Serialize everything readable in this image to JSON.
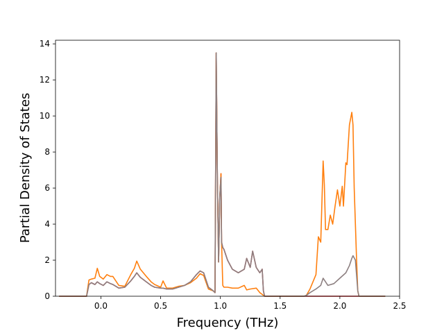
{
  "chart_data": {
    "type": "line",
    "title": "",
    "xlabel": "Frequency (THz)",
    "ylabel": "Partial Density of States",
    "xlim": [
      -0.38,
      2.5
    ],
    "ylim": [
      0,
      14.2
    ],
    "xticks": [
      0.0,
      0.5,
      1.0,
      1.5,
      2.0,
      2.5
    ],
    "xtick_labels": [
      "0.0",
      "0.5",
      "1.0",
      "1.5",
      "2.0",
      "2.5"
    ],
    "yticks": [
      0,
      2,
      4,
      6,
      8,
      10,
      12,
      14
    ],
    "ytick_labels": [
      "0",
      "2",
      "4",
      "6",
      "8",
      "10",
      "12",
      "14"
    ],
    "grid": false,
    "legend": "none",
    "series": [
      {
        "color": "#d62728",
        "x": [
          -0.35,
          -0.12,
          -0.1,
          -0.08,
          -0.05,
          -0.03,
          -0.01,
          0.02,
          0.05,
          0.08,
          0.1,
          0.15,
          0.2,
          0.25,
          0.28,
          0.3,
          0.33,
          0.38,
          0.42,
          0.45,
          0.5,
          0.52,
          0.55,
          0.6,
          0.65,
          0.7,
          0.75,
          0.8,
          0.83,
          0.86,
          0.9,
          0.94,
          0.955,
          0.965,
          0.975,
          0.985,
          0.995,
          1.005,
          1.01,
          1.02,
          1.03,
          1.06,
          1.1,
          1.15,
          1.2,
          1.22,
          1.25,
          1.27,
          1.3,
          1.33,
          1.35,
          1.36,
          1.37,
          1.4,
          2.0,
          2.1,
          2.15,
          2.16,
          2.2,
          2.38
        ],
        "y": [
          0,
          0,
          0.65,
          0.75,
          0.65,
          0.8,
          0.7,
          0.6,
          0.8,
          0.7,
          0.65,
          0.45,
          0.5,
          0.85,
          1.1,
          1.3,
          1.05,
          0.8,
          0.6,
          0.5,
          0.45,
          0.45,
          0.4,
          0.4,
          0.5,
          0.6,
          0.8,
          1.2,
          1.4,
          1.3,
          0.5,
          0.3,
          0.2,
          13.5,
          6.5,
          1.9,
          5.5,
          6.8,
          3.0,
          2.7,
          2.6,
          2.0,
          1.5,
          1.3,
          1.5,
          2.1,
          1.6,
          2.5,
          1.6,
          1.3,
          1.5,
          0.3,
          0,
          0,
          0,
          0,
          0,
          0,
          0,
          0
        ]
      },
      {
        "color": "#ff7f0e",
        "x": [
          -0.35,
          -0.12,
          -0.1,
          -0.08,
          -0.05,
          -0.03,
          -0.01,
          0.02,
          0.05,
          0.08,
          0.1,
          0.15,
          0.2,
          0.25,
          0.28,
          0.3,
          0.33,
          0.38,
          0.42,
          0.45,
          0.5,
          0.52,
          0.55,
          0.6,
          0.65,
          0.7,
          0.75,
          0.8,
          0.83,
          0.86,
          0.9,
          0.94,
          0.955,
          0.965,
          0.975,
          0.985,
          0.995,
          1.005,
          1.01,
          1.02,
          1.03,
          1.06,
          1.1,
          1.15,
          1.2,
          1.22,
          1.25,
          1.3,
          1.33,
          1.35,
          1.36,
          1.37,
          1.7,
          1.72,
          1.75,
          1.8,
          1.82,
          1.84,
          1.86,
          1.87,
          1.88,
          1.9,
          1.92,
          1.94,
          1.96,
          1.98,
          2.0,
          2.02,
          2.03,
          2.05,
          2.06,
          2.08,
          2.1,
          2.11,
          2.12,
          2.14,
          2.15,
          2.16,
          2.38
        ],
        "y": [
          0,
          0,
          0.9,
          0.95,
          1.0,
          1.55,
          1.1,
          0.95,
          1.2,
          1.1,
          1.1,
          0.6,
          0.55,
          1.2,
          1.55,
          1.95,
          1.5,
          1.1,
          0.8,
          0.65,
          0.5,
          0.85,
          0.45,
          0.45,
          0.55,
          0.6,
          0.75,
          1.0,
          1.25,
          1.15,
          0.4,
          0.3,
          0.2,
          13.5,
          6.5,
          1.9,
          5.5,
          6.8,
          3.0,
          0.6,
          0.5,
          0.5,
          0.45,
          0.45,
          0.6,
          0.35,
          0.4,
          0.45,
          0.2,
          0.1,
          0.05,
          0,
          0,
          0.05,
          0.4,
          1.2,
          3.3,
          3.0,
          7.5,
          6.2,
          3.7,
          3.7,
          4.5,
          4.0,
          5.0,
          5.9,
          5.0,
          6.1,
          5.0,
          7.4,
          7.3,
          9.5,
          10.2,
          9.5,
          6.0,
          2.0,
          0.3,
          0,
          0
        ]
      },
      {
        "color": "#8c7f80",
        "x": [
          -0.35,
          -0.12,
          -0.1,
          -0.08,
          -0.05,
          -0.03,
          -0.01,
          0.02,
          0.05,
          0.08,
          0.1,
          0.15,
          0.2,
          0.25,
          0.28,
          0.3,
          0.33,
          0.38,
          0.42,
          0.45,
          0.5,
          0.52,
          0.55,
          0.6,
          0.65,
          0.7,
          0.75,
          0.8,
          0.83,
          0.86,
          0.9,
          0.94,
          0.955,
          0.965,
          0.975,
          0.985,
          0.995,
          1.005,
          1.01,
          1.02,
          1.03,
          1.06,
          1.1,
          1.15,
          1.2,
          1.22,
          1.25,
          1.27,
          1.3,
          1.33,
          1.35,
          1.36,
          1.37,
          1.7,
          1.72,
          1.75,
          1.8,
          1.84,
          1.86,
          1.88,
          1.9,
          1.95,
          2.0,
          2.05,
          2.08,
          2.1,
          2.11,
          2.13,
          2.15,
          2.16,
          2.38
        ],
        "y": [
          0,
          0,
          0.65,
          0.75,
          0.65,
          0.8,
          0.7,
          0.6,
          0.8,
          0.7,
          0.65,
          0.45,
          0.5,
          0.85,
          1.1,
          1.3,
          1.05,
          0.8,
          0.6,
          0.5,
          0.45,
          0.45,
          0.4,
          0.4,
          0.5,
          0.6,
          0.8,
          1.2,
          1.4,
          1.3,
          0.5,
          0.3,
          0.2,
          13.5,
          6.5,
          1.9,
          5.5,
          6.6,
          3.0,
          2.7,
          2.6,
          2.0,
          1.5,
          1.3,
          1.5,
          2.1,
          1.6,
          2.5,
          1.6,
          1.3,
          1.5,
          0.3,
          0,
          0,
          0.05,
          0.2,
          0.4,
          0.6,
          1.0,
          0.8,
          0.6,
          0.7,
          1.0,
          1.3,
          1.7,
          2.1,
          2.25,
          2.0,
          0.3,
          0,
          0
        ]
      }
    ]
  }
}
